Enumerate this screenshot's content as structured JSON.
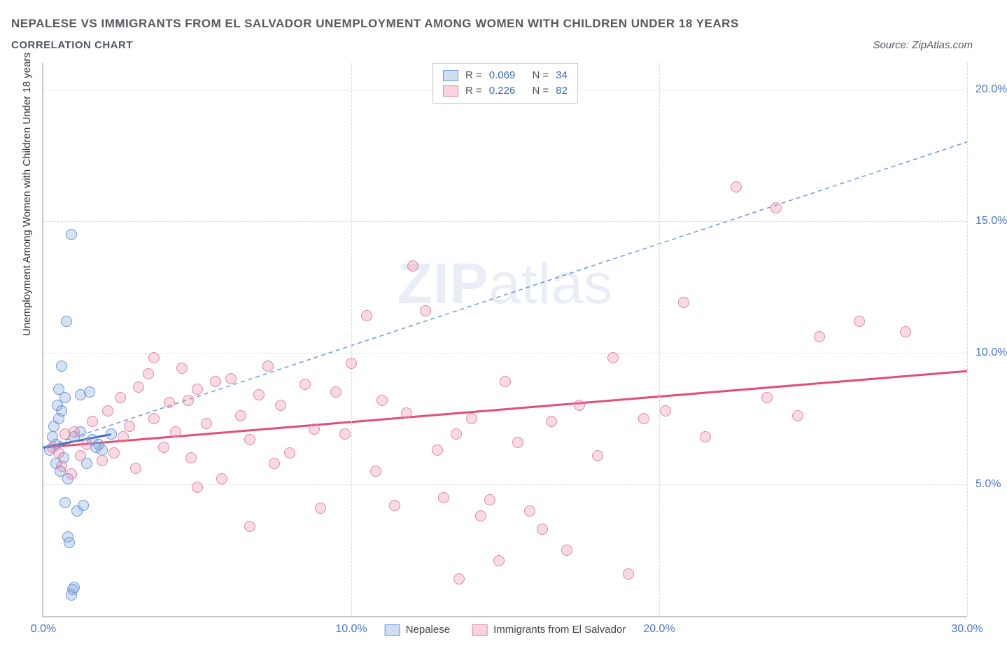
{
  "title": "NEPALESE VS IMMIGRANTS FROM EL SALVADOR UNEMPLOYMENT AMONG WOMEN WITH CHILDREN UNDER 18 YEARS",
  "subtitle": "CORRELATION CHART",
  "source": "Source: ZipAtlas.com",
  "y_axis_title": "Unemployment Among Women with Children Under 18 years",
  "watermark_bold": "ZIP",
  "watermark_rest": "atlas",
  "chart": {
    "type": "scatter",
    "xlim": [
      0,
      30
    ],
    "ylim": [
      0,
      21
    ],
    "x_ticks": [
      0,
      10,
      20,
      30
    ],
    "x_tick_labels": [
      "0.0%",
      "10.0%",
      "20.0%",
      "30.0%"
    ],
    "y_ticks": [
      5,
      10,
      15,
      20
    ],
    "y_tick_labels": [
      "5.0%",
      "10.0%",
      "15.0%",
      "20.0%"
    ],
    "background_color": "#ffffff",
    "grid_color": "#d8d8d8",
    "axis_color": "#c8c8c8",
    "marker_size": 16,
    "series": [
      {
        "name": "Nepalese",
        "color_fill": "rgba(120,160,220,0.30)",
        "color_stroke": "#6a99d8",
        "R": "0.069",
        "N": "34",
        "trend": {
          "x1": 0,
          "y1": 6.4,
          "x2": 30,
          "y2": 18.0,
          "dash": "6 5",
          "width": 1.5,
          "color": "#6a99d8"
        },
        "trend_solid": {
          "x1": 0,
          "y1": 6.4,
          "x2": 2.2,
          "y2": 6.9,
          "dash": "none",
          "width": 3,
          "color": "#3f6ab5"
        },
        "points": [
          [
            0.2,
            6.3
          ],
          [
            0.3,
            6.8
          ],
          [
            0.35,
            7.2
          ],
          [
            0.4,
            5.8
          ],
          [
            0.4,
            6.5
          ],
          [
            0.45,
            8.0
          ],
          [
            0.5,
            7.5
          ],
          [
            0.5,
            8.6
          ],
          [
            0.55,
            5.5
          ],
          [
            0.6,
            9.5
          ],
          [
            0.6,
            7.8
          ],
          [
            0.65,
            6.0
          ],
          [
            0.7,
            8.3
          ],
          [
            0.7,
            4.3
          ],
          [
            0.75,
            11.2
          ],
          [
            0.8,
            5.2
          ],
          [
            0.8,
            3.0
          ],
          [
            0.85,
            2.8
          ],
          [
            0.9,
            14.5
          ],
          [
            0.9,
            0.8
          ],
          [
            0.95,
            1.0
          ],
          [
            1.0,
            1.1
          ],
          [
            1.0,
            6.8
          ],
          [
            1.1,
            4.0
          ],
          [
            1.2,
            7.0
          ],
          [
            1.2,
            8.4
          ],
          [
            1.3,
            4.2
          ],
          [
            1.4,
            5.8
          ],
          [
            1.5,
            8.5
          ],
          [
            1.6,
            6.7
          ],
          [
            1.7,
            6.4
          ],
          [
            1.8,
            6.5
          ],
          [
            1.9,
            6.3
          ],
          [
            2.2,
            6.9
          ]
        ]
      },
      {
        "name": "Immigrants from El Salvador",
        "color_fill": "rgba(235,130,160,0.30)",
        "color_stroke": "#e08aa5",
        "R": "0.226",
        "N": "82",
        "trend": {
          "x1": 0,
          "y1": 6.4,
          "x2": 30,
          "y2": 9.3,
          "dash": "none",
          "width": 3,
          "color": "#e54b78"
        },
        "points": [
          [
            0.3,
            6.4
          ],
          [
            0.5,
            6.2
          ],
          [
            0.6,
            5.7
          ],
          [
            0.7,
            6.9
          ],
          [
            0.9,
            5.4
          ],
          [
            1.0,
            7.0
          ],
          [
            1.2,
            6.1
          ],
          [
            1.4,
            6.5
          ],
          [
            1.6,
            7.4
          ],
          [
            1.9,
            5.9
          ],
          [
            2.1,
            7.8
          ],
          [
            2.3,
            6.2
          ],
          [
            2.5,
            8.3
          ],
          [
            2.6,
            6.8
          ],
          [
            2.8,
            7.2
          ],
          [
            3.0,
            5.6
          ],
          [
            3.1,
            8.7
          ],
          [
            3.4,
            9.2
          ],
          [
            3.6,
            7.5
          ],
          [
            3.6,
            9.8
          ],
          [
            3.9,
            6.4
          ],
          [
            4.1,
            8.1
          ],
          [
            4.3,
            7.0
          ],
          [
            4.5,
            9.4
          ],
          [
            4.7,
            8.2
          ],
          [
            4.8,
            6.0
          ],
          [
            5.0,
            8.6
          ],
          [
            5.0,
            4.9
          ],
          [
            5.3,
            7.3
          ],
          [
            5.6,
            8.9
          ],
          [
            5.8,
            5.2
          ],
          [
            6.1,
            9.0
          ],
          [
            6.4,
            7.6
          ],
          [
            6.7,
            6.7
          ],
          [
            6.7,
            3.4
          ],
          [
            7.0,
            8.4
          ],
          [
            7.3,
            9.5
          ],
          [
            7.5,
            5.8
          ],
          [
            7.7,
            8.0
          ],
          [
            8.0,
            6.2
          ],
          [
            8.5,
            8.8
          ],
          [
            8.8,
            7.1
          ],
          [
            9.0,
            4.1
          ],
          [
            9.5,
            8.5
          ],
          [
            9.8,
            6.9
          ],
          [
            10.0,
            9.6
          ],
          [
            10.5,
            11.4
          ],
          [
            10.8,
            5.5
          ],
          [
            11.0,
            8.2
          ],
          [
            11.4,
            4.2
          ],
          [
            11.8,
            7.7
          ],
          [
            12.0,
            13.3
          ],
          [
            12.4,
            11.6
          ],
          [
            12.8,
            6.3
          ],
          [
            13.0,
            4.5
          ],
          [
            13.4,
            6.9
          ],
          [
            13.5,
            1.4
          ],
          [
            13.9,
            7.5
          ],
          [
            14.2,
            3.8
          ],
          [
            14.5,
            4.4
          ],
          [
            14.8,
            2.1
          ],
          [
            15.0,
            8.9
          ],
          [
            15.4,
            6.6
          ],
          [
            15.8,
            4.0
          ],
          [
            16.2,
            3.3
          ],
          [
            16.5,
            7.4
          ],
          [
            17.0,
            2.5
          ],
          [
            17.4,
            8.0
          ],
          [
            18.0,
            6.1
          ],
          [
            18.5,
            9.8
          ],
          [
            19.0,
            1.6
          ],
          [
            19.5,
            7.5
          ],
          [
            20.2,
            7.8
          ],
          [
            20.8,
            11.9
          ],
          [
            21.5,
            6.8
          ],
          [
            22.5,
            16.3
          ],
          [
            23.5,
            8.3
          ],
          [
            23.8,
            15.5
          ],
          [
            24.5,
            7.6
          ],
          [
            25.2,
            10.6
          ],
          [
            26.5,
            11.2
          ],
          [
            28.0,
            10.8
          ]
        ]
      }
    ]
  },
  "top_legend": {
    "r_label": "R =",
    "n_label": "N ="
  }
}
